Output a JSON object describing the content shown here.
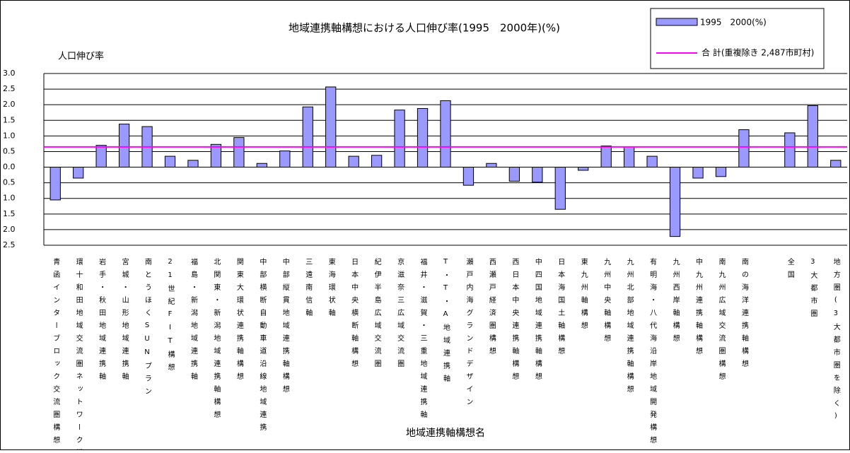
{
  "chart_data": {
    "type": "bar",
    "title": "地域連携軸構想における人口伸び率(1995　2000年)(%)",
    "y_label": "人口伸び率",
    "x_label": "地域連携軸構想名",
    "categories": [
      "青函インターブロック交流圏構想",
      "環十和田地域交流圏ネットワーク構想",
      "岩手・秋田地域連携軸",
      "宮城・山形地域連携軸",
      "南とうほくSUNプラン",
      "21世紀FIT構想",
      "福島・新潟地域連携軸",
      "北関東・新潟地域連携軸構想",
      "関東大環状連携軸構想",
      "中部横断自動車道沿線地域連携",
      "中部縦貫地域連携軸構想",
      "三遠南信軸",
      "東海環状軸",
      "日本中央横断軸構想",
      "紀伊半島広域交流圏",
      "京滋奈三広域交流圏",
      "福井・滋賀・三重地域連携軸",
      "T・T・A地域連携軸",
      "瀬戸内海グランドデザイン",
      "西瀬戸経済圏構想",
      "西日本中央連携軸構想",
      "中四国地域連携軸構想",
      "日本海国土軸構想",
      "東九州軸構想",
      "九州中央軸構想",
      "九州北部地域連携軸構想",
      "有明海・八代海沿岸地域開発構想",
      "九州西岸軸構想",
      "中九州連携軸構想",
      "南九州広域交流圏構想",
      "南の海洋連携軸構想",
      null,
      "全国",
      "3大都市圏",
      "地方圏(3大都市圏を除く)"
    ],
    "series": [
      {
        "name": "1995　2000(%)",
        "color": "#9999ff",
        "values": [
          -1.05,
          -0.35,
          0.7,
          1.38,
          1.3,
          0.35,
          0.22,
          0.73,
          0.95,
          0.12,
          0.52,
          1.93,
          2.57,
          0.35,
          0.38,
          1.83,
          1.88,
          2.13,
          -0.58,
          0.12,
          -0.45,
          -0.48,
          -1.35,
          -0.1,
          0.68,
          0.65,
          0.35,
          -2.22,
          -0.35,
          -0.3,
          1.2,
          null,
          1.1,
          1.97,
          0.22
        ]
      }
    ],
    "reference_line": {
      "name": "合 計(重複除き 2,487市町村)",
      "value": 0.65,
      "color": "#ff00ff"
    },
    "ylim": [
      -2.5,
      3
    ],
    "yticks": [
      {
        "value": 3,
        "label": "3.0"
      },
      2.5,
      {
        "value": 2,
        "label": "2.0"
      },
      1.5,
      {
        "value": 1,
        "label": "1.0"
      },
      0.5,
      {
        "value": 0,
        "label": "0.0"
      },
      {
        "value": -0.5,
        "label": "0.5"
      },
      {
        "value": -1,
        "label": "1.0"
      },
      {
        "value": -1.5,
        "label": "1.5"
      },
      {
        "value": -2,
        "label": "2.0"
      },
      {
        "value": -2.5,
        "label": "2.5"
      }
    ],
    "grid": true
  }
}
